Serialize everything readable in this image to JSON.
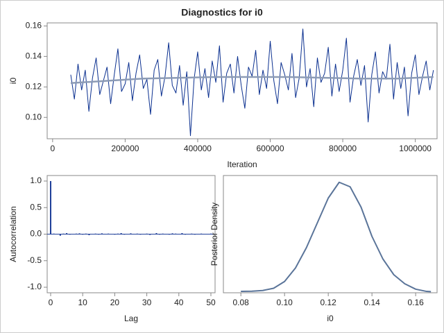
{
  "chart_data": [
    {
      "type": "line",
      "title": "Diagnostics for i0",
      "xlabel": "Iteration",
      "ylabel": "i0",
      "xlim": [
        -15000,
        1060000
      ],
      "ylim": [
        0.086,
        0.162
      ],
      "xticks": [
        0,
        200000,
        400000,
        600000,
        800000,
        1000000
      ],
      "yticks": [
        {
          "value": 0.1,
          "label": "0.10"
        },
        0.12,
        0.14,
        0.16
      ],
      "series": [
        {
          "color": "#0a2f8f",
          "x": [
            50000,
            60000,
            70000,
            80000,
            90000,
            100000,
            110000,
            120000,
            130000,
            140000,
            150000,
            160000,
            170000,
            180000,
            190000,
            200000,
            210000,
            220000,
            230000,
            240000,
            250000,
            260000,
            270000,
            280000,
            290000,
            300000,
            310000,
            320000,
            330000,
            340000,
            350000,
            360000,
            370000,
            380000,
            390000,
            400000,
            410000,
            420000,
            430000,
            440000,
            450000,
            460000,
            470000,
            480000,
            490000,
            500000,
            510000,
            520000,
            530000,
            540000,
            550000,
            560000,
            570000,
            580000,
            590000,
            600000,
            610000,
            620000,
            630000,
            640000,
            650000,
            660000,
            670000,
            680000,
            690000,
            700000,
            710000,
            720000,
            730000,
            740000,
            750000,
            760000,
            770000,
            780000,
            790000,
            800000,
            810000,
            820000,
            830000,
            840000,
            850000,
            860000,
            870000,
            880000,
            890000,
            900000,
            910000,
            920000,
            930000,
            940000,
            950000,
            960000,
            970000,
            980000,
            990000,
            1000000,
            1010000,
            1020000,
            1030000,
            1040000,
            1050000
          ],
          "values": [
            0.128,
            0.112,
            0.135,
            0.118,
            0.131,
            0.104,
            0.126,
            0.139,
            0.115,
            0.124,
            0.133,
            0.109,
            0.128,
            0.145,
            0.117,
            0.122,
            0.136,
            0.111,
            0.129,
            0.141,
            0.119,
            0.125,
            0.102,
            0.131,
            0.138,
            0.114,
            0.127,
            0.149,
            0.121,
            0.116,
            0.134,
            0.108,
            0.13,
            0.088,
            0.125,
            0.143,
            0.118,
            0.132,
            0.113,
            0.137,
            0.123,
            0.147,
            0.11,
            0.129,
            0.135,
            0.116,
            0.14,
            0.121,
            0.106,
            0.133,
            0.127,
            0.144,
            0.115,
            0.131,
            0.119,
            0.15,
            0.124,
            0.109,
            0.136,
            0.128,
            0.118,
            0.142,
            0.113,
            0.126,
            0.158,
            0.12,
            0.132,
            0.107,
            0.139,
            0.123,
            0.129,
            0.146,
            0.114,
            0.135,
            0.117,
            0.131,
            0.152,
            0.11,
            0.127,
            0.138,
            0.121,
            0.134,
            0.097,
            0.128,
            0.143,
            0.116,
            0.13,
            0.125,
            0.148,
            0.112,
            0.136,
            0.119,
            0.133,
            0.101,
            0.129,
            0.141,
            0.115,
            0.127,
            0.137,
            0.118,
            0.131
          ]
        },
        {
          "color": "#8c9bb5",
          "x": [
            50000,
            150000,
            250000,
            350000,
            450000,
            550000,
            650000,
            750000,
            850000,
            950000,
            1050000
          ],
          "values": [
            0.1225,
            0.124,
            0.1255,
            0.126,
            0.1265,
            0.1265,
            0.1265,
            0.126,
            0.1255,
            0.1255,
            0.1265
          ]
        }
      ]
    },
    {
      "type": "bar",
      "xlabel": "Lag",
      "ylabel": "Autocorrelation",
      "xlim": [
        -1.08,
        51.3
      ],
      "ylim": [
        -1.104,
        1.104
      ],
      "xticks": [
        0,
        10,
        20,
        30,
        40,
        50
      ],
      "yticks": [
        {
          "value": -1,
          "label": "-1.0"
        },
        -0.5,
        {
          "value": 0,
          "label": "0.0"
        },
        0.5,
        {
          "value": 1,
          "label": "1.0"
        }
      ],
      "color": "#1f3f99",
      "x": [
        0,
        1,
        2,
        3,
        4,
        5,
        6,
        7,
        8,
        9,
        10,
        11,
        12,
        13,
        14,
        15,
        16,
        17,
        18,
        19,
        20,
        21,
        22,
        23,
        24,
        25,
        26,
        27,
        28,
        29,
        30,
        31,
        32,
        33,
        34,
        35,
        36,
        37,
        38,
        39,
        40,
        41,
        42,
        43,
        44,
        45,
        46,
        47,
        48,
        49,
        50
      ],
      "values": [
        1.0,
        0.01,
        0.005,
        -0.03,
        0.01,
        0.02,
        -0.01,
        0.005,
        0.01,
        0.015,
        -0.01,
        0.01,
        -0.02,
        0.005,
        0.01,
        -0.01,
        0.015,
        -0.005,
        0.01,
        0.005,
        -0.01,
        0.01,
        0.02,
        -0.01,
        0.005,
        0.015,
        -0.005,
        0.01,
        -0.01,
        0.005,
        0.01,
        -0.015,
        0.005,
        0.02,
        -0.01,
        0.01,
        0.005,
        -0.01,
        0.015,
        0.01,
        -0.005,
        0.02,
        -0.01,
        0.005,
        0.01,
        -0.01,
        0.005,
        0.01,
        -0.005,
        0.005,
        0.01
      ]
    },
    {
      "type": "line",
      "xlabel": "i0",
      "ylabel": "Posterior Density",
      "xlim": [
        0.072,
        0.1698
      ],
      "ylim": [
        0,
        26
      ],
      "xticks": [
        0.08,
        {
          "value": 0.1,
          "label": "0.10"
        },
        0.12,
        0.14,
        0.16
      ],
      "series": [
        {
          "color": "#5a7499",
          "x": [
            0.08,
            0.085,
            0.09,
            0.095,
            0.1,
            0.105,
            0.11,
            0.115,
            0.12,
            0.125,
            0.13,
            0.135,
            0.14,
            0.145,
            0.15,
            0.155,
            0.16,
            0.165,
            0.167
          ],
          "values": [
            0.3,
            0.35,
            0.5,
            1.0,
            2.5,
            5.5,
            10,
            15.5,
            21,
            24.5,
            23.5,
            19,
            12.5,
            7.5,
            4,
            2,
            0.8,
            0.3,
            0.25
          ]
        }
      ]
    }
  ]
}
